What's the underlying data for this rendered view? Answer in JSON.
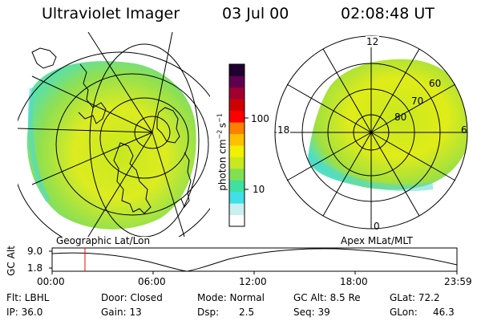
{
  "header": {
    "title": "Ultraviolet Imager",
    "date": "03 Jul 00",
    "time": "02:08:48 UT"
  },
  "colorbar": {
    "unit_label": "photon cm",
    "unit_sup1": "−2",
    "unit_mid": "s",
    "unit_sup2": "−1",
    "ticks": [
      "100",
      "10"
    ],
    "colors": [
      "#ffffff",
      "#c8f0f0",
      "#40e0e8",
      "#40e0a0",
      "#80e050",
      "#c8e820",
      "#f0f000",
      "#ffc000",
      "#ff8000",
      "#ff0000",
      "#d00000",
      "#a00030",
      "#600050",
      "#200030"
    ]
  },
  "left_panel": {
    "caption": "Geographic Lat/Lon"
  },
  "right_panel": {
    "caption": "Apex MLat/MLT",
    "mlt_labels": [
      "12",
      "18",
      "6",
      "0"
    ],
    "lat_labels": [
      "60",
      "70",
      "80"
    ]
  },
  "altitude_plot": {
    "ylabel": "GC Alt",
    "yticks": [
      "9.0",
      "1.8"
    ],
    "xticks": [
      "00:00",
      "06:00",
      "12:00",
      "18:00",
      "23:59"
    ],
    "marker_color": "#ff0000"
  },
  "info": {
    "row1": [
      "Flt: LBHL",
      "Door: Closed",
      "Mode: Normal",
      "GC Alt: 8.5 Re",
      "GLat: 72.2"
    ],
    "row2": [
      "IP: 36.0",
      "Gain: 13",
      "Dsp:",
      "2.5",
      "Seq: 39",
      "GLon:",
      "46.3"
    ]
  }
}
